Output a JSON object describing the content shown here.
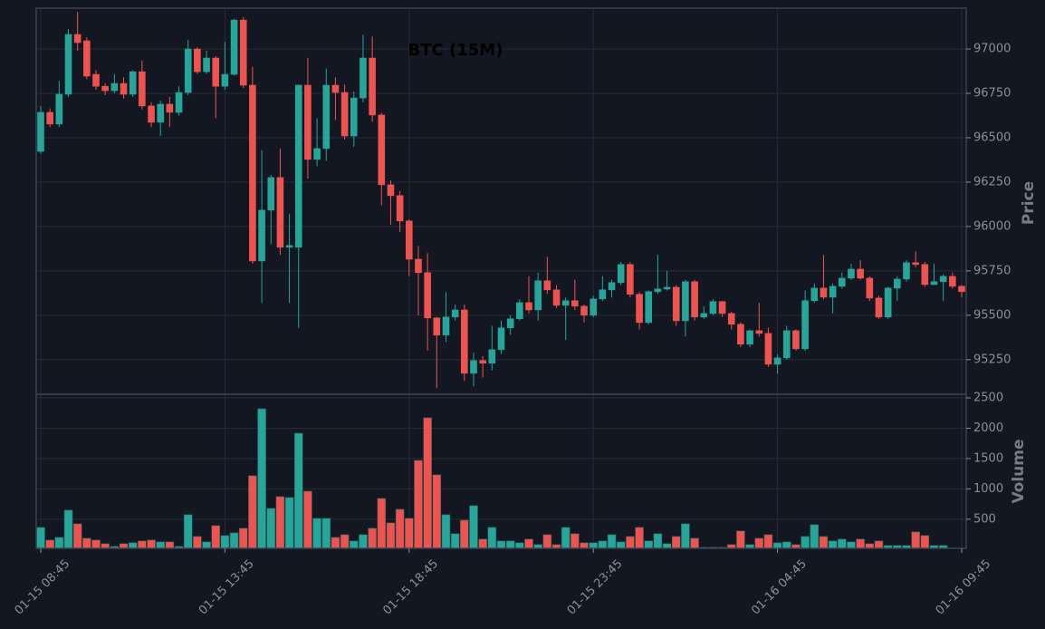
{
  "chart_data": {
    "type": "candlestick",
    "title": "BTC (15M)",
    "y_label": "Price",
    "y2_label": "Volume",
    "up_color": "#26a69a",
    "down_color": "#ef5350",
    "grid": true,
    "categories": [
      "01-15 08:45",
      null,
      null,
      null,
      null,
      null,
      null,
      null,
      null,
      null,
      null,
      null,
      null,
      null,
      null,
      null,
      null,
      null,
      null,
      null,
      "01-15 13:45",
      null,
      null,
      null,
      null,
      null,
      null,
      null,
      null,
      null,
      null,
      null,
      null,
      null,
      null,
      null,
      null,
      null,
      null,
      null,
      "01-15 18:45",
      null,
      null,
      null,
      null,
      null,
      null,
      null,
      null,
      null,
      null,
      null,
      null,
      null,
      null,
      null,
      null,
      null,
      null,
      null,
      "01-15 23:45",
      null,
      null,
      null,
      null,
      null,
      null,
      null,
      null,
      null,
      null,
      null,
      null,
      null,
      null,
      null,
      null,
      null,
      null,
      null,
      "01-16 04:45",
      null,
      null,
      null,
      null,
      null,
      null,
      null,
      null,
      null,
      null,
      null,
      null,
      null,
      null,
      null,
      null,
      null,
      null,
      null,
      "01-16 09:45"
    ],
    "open": [
      96423,
      96643,
      96577,
      96745,
      97082,
      97046,
      96857,
      96790,
      96765,
      96806,
      96745,
      96872,
      96679,
      96587,
      96689,
      96643,
      96755,
      97000,
      96872,
      96949,
      96790,
      96857,
      97163,
      96796,
      95806,
      96092,
      96276,
      95883,
      95883,
      96796,
      96378,
      96439,
      96796,
      96755,
      96510,
      96724,
      96949,
      96628,
      96235,
      96174,
      96031,
      95816,
      95740,
      95485,
      95388,
      95490,
      95530,
      95173,
      95245,
      95230,
      95306,
      95429,
      95480,
      95571,
      95530,
      95694,
      95643,
      95556,
      95582,
      95551,
      95500,
      95592,
      95643,
      95684,
      95786,
      95618,
      95459,
      95633,
      95648,
      95658,
      95469,
      95689,
      95490,
      95510,
      95577,
      95510,
      95449,
      95337,
      95413,
      95398,
      95224,
      95260,
      95413,
      95311,
      95582,
      95653,
      95602,
      95663,
      95709,
      95760,
      95709,
      95597,
      95490,
      95653,
      95704,
      95796,
      95786,
      95673,
      95689,
      95719,
      95663
    ],
    "high": [
      96680,
      96665,
      96820,
      97112,
      97209,
      97065,
      96880,
      96805,
      96860,
      96840,
      96880,
      96935,
      96700,
      96710,
      96730,
      96790,
      97050,
      97010,
      96990,
      96960,
      97040,
      97170,
      97180,
      96900,
      96430,
      96290,
      96440,
      96070,
      96800,
      96950,
      96610,
      96890,
      96840,
      96800,
      96760,
      97080,
      97070,
      96640,
      96260,
      96200,
      96040,
      95890,
      95850,
      95490,
      95630,
      95560,
      95560,
      95290,
      95270,
      95440,
      95470,
      95500,
      95590,
      95720,
      95740,
      95830,
      95670,
      95600,
      95700,
      95560,
      95610,
      95720,
      95700,
      95800,
      95800,
      95630,
      95640,
      95840,
      95750,
      95670,
      95700,
      95700,
      95550,
      95590,
      95580,
      95520,
      95460,
      95420,
      95570,
      95430,
      95280,
      95440,
      95420,
      95640,
      95680,
      95840,
      95680,
      95740,
      95790,
      95810,
      95720,
      95610,
      95660,
      95720,
      95810,
      95860,
      95800,
      95790,
      95730,
      95740,
      95670
    ],
    "low": [
      96410,
      96560,
      96560,
      96730,
      96990,
      96830,
      96770,
      96740,
      96750,
      96720,
      96730,
      96660,
      96560,
      96510,
      96560,
      96625,
      96740,
      96860,
      96860,
      96610,
      96770,
      96850,
      96780,
      95790,
      95570,
      95900,
      95840,
      95570,
      95430,
      96270,
      96340,
      96370,
      96600,
      96490,
      96450,
      96700,
      96590,
      96120,
      96010,
      95970,
      95720,
      95500,
      95300,
      95090,
      95350,
      95470,
      95130,
      95100,
      95150,
      95190,
      95280,
      95390,
      95470,
      95510,
      95470,
      95620,
      95540,
      95360,
      95530,
      95460,
      95490,
      95580,
      95600,
      95670,
      95600,
      95420,
      95450,
      95620,
      95640,
      95440,
      95380,
      95470,
      95480,
      95500,
      95490,
      95420,
      95320,
      95320,
      95380,
      95210,
      95170,
      95250,
      95300,
      95300,
      95570,
      95590,
      95510,
      95650,
      95700,
      95700,
      95580,
      95480,
      95480,
      95580,
      95690,
      95770,
      95660,
      95670,
      95580,
      95650,
      95600
    ],
    "close": [
      96643,
      96577,
      96745,
      97082,
      97036,
      96847,
      96790,
      96765,
      96806,
      96745,
      96872,
      96679,
      96587,
      96689,
      96643,
      96755,
      97000,
      96872,
      96949,
      96790,
      96857,
      97163,
      96796,
      95806,
      96092,
      96276,
      95883,
      95893,
      96796,
      96378,
      96439,
      96796,
      96755,
      96510,
      96724,
      96949,
      96628,
      96235,
      96174,
      96031,
      95816,
      95740,
      95485,
      95388,
      95490,
      95530,
      95173,
      95245,
      95230,
      95306,
      95429,
      95480,
      95571,
      95530,
      95694,
      95643,
      95556,
      95582,
      95551,
      95500,
      95592,
      95643,
      95684,
      95786,
      95618,
      95459,
      95633,
      95648,
      95658,
      95469,
      95689,
      95490,
      95510,
      95577,
      95510,
      95449,
      95337,
      95413,
      95398,
      95224,
      95260,
      95413,
      95311,
      95582,
      95653,
      95602,
      95663,
      95709,
      95760,
      95709,
      95597,
      95490,
      95653,
      95704,
      95796,
      95786,
      95673,
      95689,
      95719,
      95663,
      95633
    ],
    "volume": [
      366,
      157,
      201,
      649,
      425,
      186,
      157,
      97,
      52,
      97,
      112,
      142,
      157,
      127,
      127,
      52,
      575,
      216,
      127,
      395,
      231,
      276,
      351,
      1217,
      2321,
      679,
      873,
      858,
      1918,
      963,
      515,
      515,
      201,
      246,
      142,
      246,
      351,
      843,
      440,
      664,
      515,
      1470,
      2172,
      1232,
      575,
      261,
      485,
      724,
      172,
      366,
      142,
      142,
      112,
      172,
      82,
      246,
      82,
      366,
      261,
      112,
      112,
      142,
      246,
      127,
      216,
      366,
      142,
      261,
      97,
      216,
      425,
      186,
      37,
      37,
      37,
      82,
      306,
      82,
      186,
      246,
      112,
      127,
      82,
      216,
      410,
      216,
      142,
      172,
      127,
      172,
      97,
      142,
      67,
      67,
      67,
      291,
      231,
      67,
      67,
      25,
      25
    ],
    "ylim": [
      95055,
      97230
    ],
    "yticks": [
      95250,
      95500,
      95750,
      96000,
      96250,
      96500,
      96750,
      97000
    ],
    "y2lim": [
      20,
      2560
    ],
    "y2ticks": [
      500,
      1000,
      1500,
      2000,
      2500
    ]
  }
}
